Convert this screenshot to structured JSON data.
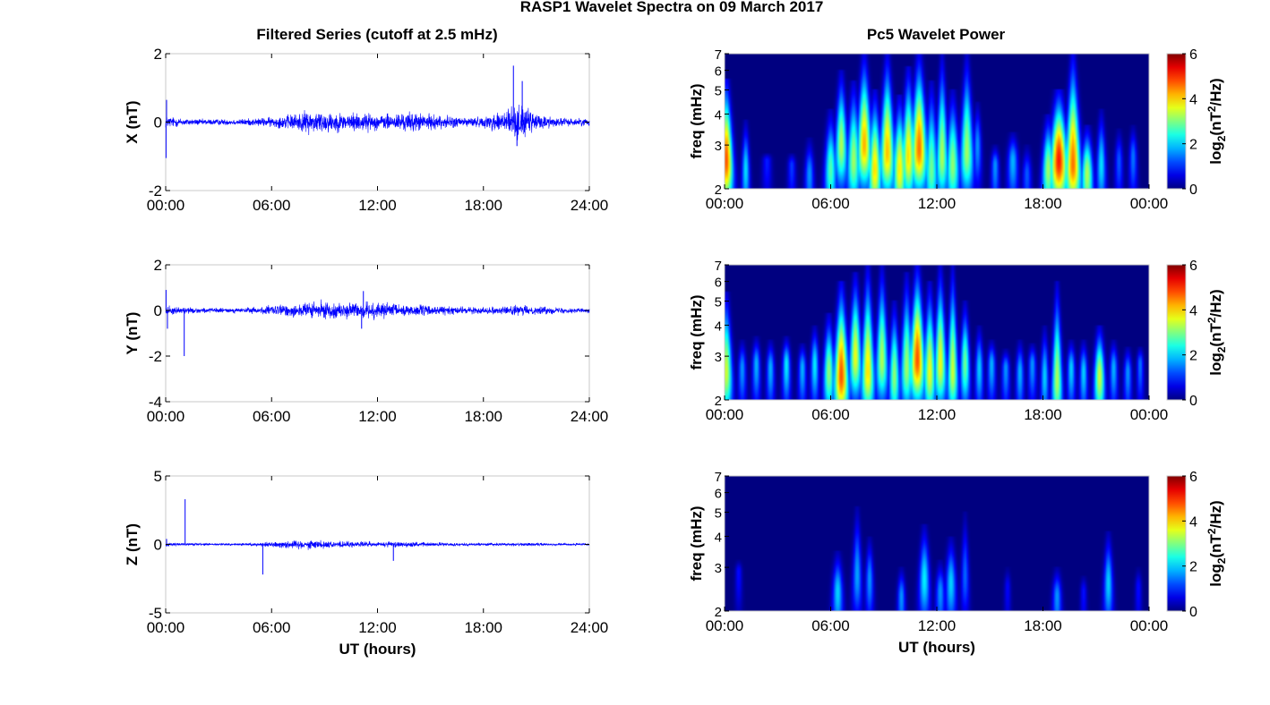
{
  "title": "RASP1 Wavelet Spectra on 09 March 2017",
  "left_title": "Filtered Series (cutoff at 2.5 mHz)",
  "right_title": "Pc5 Wavelet Power",
  "colors": {
    "trace": "#0000ff",
    "axis": "#000000",
    "frame": "#c8c8c8"
  },
  "chart_data": [
    {
      "type": "line",
      "panel": "series-x",
      "ylabel": "X (nT)",
      "ylim": [
        -2,
        2
      ],
      "yticks": [
        "2",
        "0",
        "-2"
      ],
      "xlim": [
        0,
        24
      ],
      "xticks": [
        "00:00",
        "06:00",
        "12:00",
        "18:00",
        "24:00"
      ],
      "xlabel": "",
      "envelope": {
        "x": [
          0,
          1,
          2,
          3,
          4,
          5,
          6,
          7,
          8,
          9,
          10,
          11,
          12,
          13,
          14,
          15,
          16,
          17,
          18,
          19,
          20,
          21,
          22,
          23,
          24
        ],
        "y": [
          0.25,
          0.15,
          0.12,
          0.12,
          0.12,
          0.15,
          0.2,
          0.3,
          0.45,
          0.45,
          0.35,
          0.4,
          0.3,
          0.35,
          0.4,
          0.3,
          0.25,
          0.2,
          0.2,
          0.5,
          0.7,
          0.35,
          0.2,
          0.15,
          0.15
        ]
      },
      "spikes": [
        {
          "x": 0.02,
          "y": -1.05
        },
        {
          "x": 0.05,
          "y": 0.65
        },
        {
          "x": 19.7,
          "y": 1.65
        },
        {
          "x": 20.2,
          "y": 1.2
        },
        {
          "x": 19.9,
          "y": -0.7
        }
      ]
    },
    {
      "type": "line",
      "panel": "series-y",
      "ylabel": "Y (nT)",
      "ylim": [
        -4,
        2
      ],
      "yticks": [
        "2",
        "0",
        "-2",
        "-4"
      ],
      "xlim": [
        0,
        24
      ],
      "xticks": [
        "00:00",
        "06:00",
        "12:00",
        "18:00",
        "24:00"
      ],
      "xlabel": "",
      "envelope": {
        "x": [
          0,
          1,
          2,
          3,
          4,
          5,
          6,
          7,
          8,
          9,
          10,
          11,
          12,
          13,
          14,
          15,
          16,
          17,
          18,
          19,
          20,
          21,
          22,
          23,
          24
        ],
        "y": [
          0.3,
          0.2,
          0.15,
          0.15,
          0.15,
          0.2,
          0.3,
          0.4,
          0.5,
          0.5,
          0.45,
          0.5,
          0.45,
          0.45,
          0.35,
          0.3,
          0.25,
          0.2,
          0.2,
          0.25,
          0.3,
          0.25,
          0.2,
          0.15,
          0.15
        ]
      },
      "spikes": [
        {
          "x": 0.02,
          "y": 0.9
        },
        {
          "x": 1.05,
          "y": -2.0
        },
        {
          "x": 0.1,
          "y": -0.8
        },
        {
          "x": 11.2,
          "y": 0.85
        },
        {
          "x": 11.1,
          "y": -0.8
        }
      ]
    },
    {
      "type": "line",
      "panel": "series-z",
      "ylabel": "Z (nT)",
      "ylim": [
        -5,
        5
      ],
      "yticks": [
        "5",
        "0",
        "-5"
      ],
      "xlim": [
        0,
        24
      ],
      "xticks": [
        "00:00",
        "06:00",
        "12:00",
        "18:00",
        "24:00"
      ],
      "xlabel": "UT (hours)",
      "envelope": {
        "x": [
          0,
          1,
          2,
          3,
          4,
          5,
          6,
          7,
          8,
          9,
          10,
          11,
          12,
          13,
          14,
          15,
          16,
          17,
          18,
          19,
          20,
          21,
          22,
          23,
          24
        ],
        "y": [
          0.2,
          0.15,
          0.12,
          0.12,
          0.12,
          0.15,
          0.25,
          0.4,
          0.45,
          0.4,
          0.3,
          0.3,
          0.25,
          0.3,
          0.25,
          0.2,
          0.15,
          0.15,
          0.15,
          0.15,
          0.15,
          0.15,
          0.12,
          0.12,
          0.12
        ]
      },
      "spikes": [
        {
          "x": 1.1,
          "y": 3.3
        },
        {
          "x": 5.5,
          "y": -2.2
        },
        {
          "x": 12.9,
          "y": -1.2
        },
        {
          "x": 0.05,
          "y": 0.4
        }
      ]
    },
    {
      "type": "heatmap",
      "panel": "power-x",
      "ylabel": "freq (mHz)",
      "yscale": "log",
      "ylim": [
        2,
        7
      ],
      "yticks": [
        2,
        3,
        4,
        5,
        6,
        7
      ],
      "xlim": [
        0,
        24
      ],
      "xticks": [
        "00:00",
        "06:00",
        "12:00",
        "18:00",
        "00:00"
      ],
      "xlabel": "",
      "colorbar": {
        "label_base": "log",
        "label_sub": "2",
        "label_body": "(nT",
        "label_sup": "2",
        "label_end": "/Hz)",
        "range": [
          0,
          6
        ],
        "ticks": [
          "6",
          "4",
          "2",
          "0"
        ]
      },
      "bursts": [
        [
          0.1,
          1.0,
          2.6,
          5.2,
          5.6
        ],
        [
          1.2,
          0.6,
          2.4,
          2.3,
          3.8
        ],
        [
          2.4,
          0.7,
          2.6,
          1.0,
          2.8
        ],
        [
          3.8,
          0.6,
          2.5,
          1.2,
          2.8
        ],
        [
          4.8,
          0.7,
          2.3,
          1.8,
          3.2
        ],
        [
          6.0,
          0.9,
          2.4,
          3.0,
          4.2
        ],
        [
          6.6,
          0.9,
          3.0,
          3.6,
          6.0
        ],
        [
          7.3,
          1.0,
          2.6,
          3.5,
          5.5
        ],
        [
          7.9,
          1.1,
          3.0,
          4.6,
          7.0
        ],
        [
          8.5,
          1.0,
          2.4,
          4.3,
          5.0
        ],
        [
          9.2,
          1.1,
          2.8,
          4.5,
          7.0
        ],
        [
          9.9,
          1.0,
          2.4,
          4.2,
          4.8
        ],
        [
          10.4,
          1.0,
          2.7,
          4.3,
          6.2
        ],
        [
          11.0,
          1.2,
          2.9,
          5.0,
          7.0
        ],
        [
          11.7,
          1.0,
          2.4,
          3.2,
          5.5
        ],
        [
          12.3,
          0.9,
          2.7,
          3.6,
          7.0
        ],
        [
          12.9,
          1.0,
          2.5,
          3.4,
          5.0
        ],
        [
          13.7,
          1.0,
          2.8,
          3.5,
          7.0
        ],
        [
          14.3,
          0.6,
          3.0,
          1.8,
          4.5
        ],
        [
          15.3,
          0.6,
          2.5,
          1.8,
          3.0
        ],
        [
          16.3,
          0.8,
          2.6,
          2.0,
          3.4
        ],
        [
          17.1,
          0.7,
          2.3,
          1.4,
          3.0
        ],
        [
          18.3,
          0.9,
          2.4,
          3.5,
          4.0
        ],
        [
          18.9,
          1.3,
          2.6,
          5.6,
          5.0
        ],
        [
          19.7,
          1.2,
          2.5,
          5.0,
          7.0
        ],
        [
          20.5,
          0.9,
          2.3,
          3.6,
          3.6
        ],
        [
          21.3,
          0.7,
          2.5,
          2.3,
          4.2
        ],
        [
          22.3,
          0.6,
          2.6,
          1.4,
          3.5
        ],
        [
          23.1,
          0.6,
          2.7,
          1.6,
          3.6
        ]
      ]
    },
    {
      "type": "heatmap",
      "panel": "power-y",
      "ylabel": "freq (mHz)",
      "yscale": "log",
      "ylim": [
        2,
        7
      ],
      "yticks": [
        2,
        3,
        4,
        5,
        6,
        7
      ],
      "xlim": [
        0,
        24
      ],
      "xticks": [
        "00:00",
        "06:00",
        "12:00",
        "18:00",
        "00:00"
      ],
      "xlabel": "",
      "colorbar": {
        "label_base": "log",
        "label_sub": "2",
        "label_body": "(nT",
        "label_sup": "2",
        "label_end": "/Hz)",
        "range": [
          0,
          6
        ],
        "ticks": [
          "6",
          "4",
          "2",
          "0"
        ]
      },
      "bursts": [
        [
          0.1,
          0.9,
          2.6,
          3.8,
          5.5
        ],
        [
          1.0,
          0.6,
          2.7,
          1.8,
          3.5
        ],
        [
          1.8,
          0.6,
          2.8,
          2.0,
          3.6
        ],
        [
          2.6,
          0.6,
          2.7,
          2.0,
          3.5
        ],
        [
          3.5,
          0.6,
          2.8,
          2.4,
          3.6
        ],
        [
          4.4,
          0.6,
          2.7,
          2.0,
          3.4
        ],
        [
          5.1,
          0.6,
          2.8,
          2.4,
          4.0
        ],
        [
          5.9,
          0.8,
          2.6,
          3.4,
          4.5
        ],
        [
          6.6,
          1.1,
          2.5,
          5.2,
          6.0
        ],
        [
          7.4,
          0.9,
          3.0,
          4.0,
          6.5
        ],
        [
          8.1,
          1.0,
          2.6,
          4.3,
          7.0
        ],
        [
          8.9,
          0.9,
          2.9,
          3.6,
          7.0
        ],
        [
          9.6,
          0.8,
          2.5,
          3.4,
          5.0
        ],
        [
          10.3,
          0.9,
          2.7,
          3.5,
          6.5
        ],
        [
          10.9,
          1.1,
          2.9,
          5.2,
          7.0
        ],
        [
          11.6,
          0.9,
          2.6,
          4.0,
          6.0
        ],
        [
          12.2,
          0.9,
          2.8,
          4.0,
          7.0
        ],
        [
          12.9,
          0.8,
          2.6,
          3.8,
          7.0
        ],
        [
          13.6,
          0.7,
          2.8,
          3.2,
          5.0
        ],
        [
          14.4,
          0.6,
          2.7,
          2.2,
          4.0
        ],
        [
          15.1,
          0.6,
          2.8,
          2.0,
          3.5
        ],
        [
          15.9,
          0.6,
          2.7,
          1.8,
          3.2
        ],
        [
          16.7,
          0.6,
          2.6,
          2.0,
          3.5
        ],
        [
          17.4,
          0.6,
          2.8,
          1.8,
          3.4
        ],
        [
          18.1,
          0.6,
          2.5,
          2.2,
          4.0
        ],
        [
          18.8,
          0.8,
          2.4,
          3.6,
          6.0
        ],
        [
          19.6,
          0.6,
          2.7,
          2.2,
          3.5
        ],
        [
          20.3,
          0.6,
          2.6,
          2.2,
          3.5
        ],
        [
          21.2,
          0.8,
          2.5,
          3.8,
          4.0
        ],
        [
          22.0,
          0.6,
          2.7,
          2.0,
          3.5
        ],
        [
          22.8,
          0.6,
          2.6,
          1.8,
          3.3
        ],
        [
          23.5,
          0.5,
          2.8,
          1.6,
          3.3
        ]
      ]
    },
    {
      "type": "heatmap",
      "panel": "power-z",
      "ylabel": "freq (mHz)",
      "yscale": "log",
      "ylim": [
        2,
        7
      ],
      "yticks": [
        2,
        3,
        4,
        5,
        6,
        7
      ],
      "xlim": [
        0,
        24
      ],
      "xticks": [
        "00:00",
        "06:00",
        "12:00",
        "18:00",
        "00:00"
      ],
      "xlabel": "UT (hours)",
      "colorbar": {
        "label_base": "log",
        "label_sub": "2",
        "label_body": "(nT",
        "label_sup": "2",
        "label_end": "/Hz)",
        "range": [
          0,
          6
        ],
        "ticks": [
          "6",
          "4",
          "2",
          "0"
        ]
      },
      "bursts": [
        [
          0.8,
          0.5,
          2.9,
          0.9,
          3.2
        ],
        [
          6.4,
          0.8,
          2.4,
          2.2,
          3.5
        ],
        [
          7.5,
          0.7,
          2.8,
          1.9,
          5.3
        ],
        [
          8.2,
          0.6,
          2.7,
          1.8,
          4.0
        ],
        [
          10.0,
          0.6,
          2.3,
          1.8,
          3.0
        ],
        [
          11.3,
          0.8,
          2.7,
          2.4,
          4.5
        ],
        [
          12.2,
          0.7,
          2.4,
          1.8,
          3.2
        ],
        [
          12.8,
          0.8,
          2.6,
          2.2,
          4.0
        ],
        [
          13.6,
          0.6,
          2.8,
          1.5,
          5.0
        ],
        [
          16.0,
          0.5,
          2.5,
          0.8,
          3.0
        ],
        [
          18.8,
          0.7,
          2.3,
          1.8,
          3.0
        ],
        [
          20.3,
          0.5,
          2.4,
          0.9,
          2.8
        ],
        [
          21.7,
          0.7,
          2.6,
          2.2,
          4.2
        ],
        [
          23.4,
          0.5,
          2.5,
          0.9,
          3.0
        ]
      ]
    }
  ]
}
